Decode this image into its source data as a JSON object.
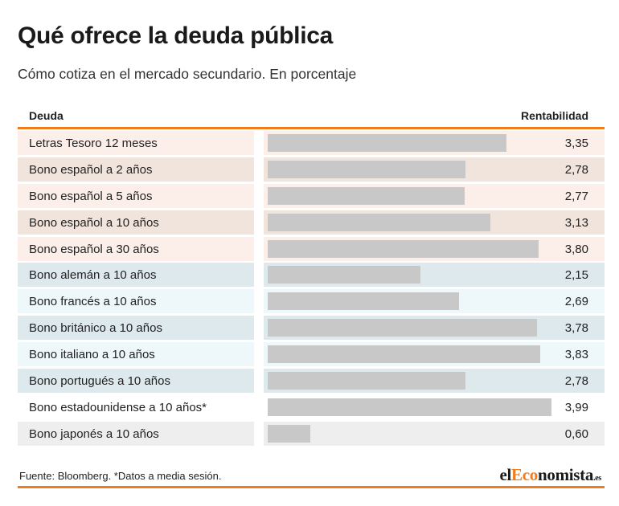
{
  "title": "Qué ofrece la deuda pública",
  "subtitle": "Cómo cotiza en el mercado secundario. En porcentaje",
  "table": {
    "col_left": "Deuda",
    "col_right": "Rentabilidad"
  },
  "colors": {
    "accent": "#f07c1d",
    "bar": "#c8c8c8",
    "spain_light": "#fcefe9",
    "spain_dark": "#f1e4dc",
    "europe_dark": "#dde9ed",
    "europe_light": "#eef8fa",
    "other_light": "#ffffff",
    "other_dark": "#eeeeee"
  },
  "chart_data": {
    "type": "bar",
    "orientation": "horizontal",
    "categories": [
      "Letras Tesoro 12 meses",
      "Bono español a 2 años",
      "Bono español a 5 años",
      "Bono español a 10 años",
      "Bono español a 30 años",
      "Bono alemán a 10 años",
      "Bono francés a 10 años",
      "Bono británico a 10 años",
      "Bono italiano a 10 años",
      "Bono portugués a 10 años",
      "Bono estadounidense a 10 años*",
      "Bono japonés a 10 años"
    ],
    "values": [
      3.35,
      2.78,
      2.77,
      3.13,
      3.8,
      2.15,
      2.69,
      3.78,
      3.83,
      2.78,
      3.99,
      0.6
    ],
    "value_labels": [
      "3,35",
      "2,78",
      "2,77",
      "3,13",
      "3,80",
      "2,15",
      "2,69",
      "3,78",
      "3,83",
      "2,78",
      "3,99",
      "0,60"
    ],
    "row_groups": [
      "spain",
      "spain",
      "spain",
      "spain",
      "spain",
      "europe",
      "europe",
      "europe",
      "europe",
      "europe",
      "other",
      "other"
    ],
    "title": "Qué ofrece la deuda pública",
    "xlim": [
      0,
      4.2
    ],
    "grid": false
  },
  "footer": {
    "source": "Fuente: Bloomberg. *Datos a media sesión.",
    "logo_pre": "el",
    "logo_accent": "Eco",
    "logo_post": "nomista",
    "logo_tld": ".es"
  }
}
